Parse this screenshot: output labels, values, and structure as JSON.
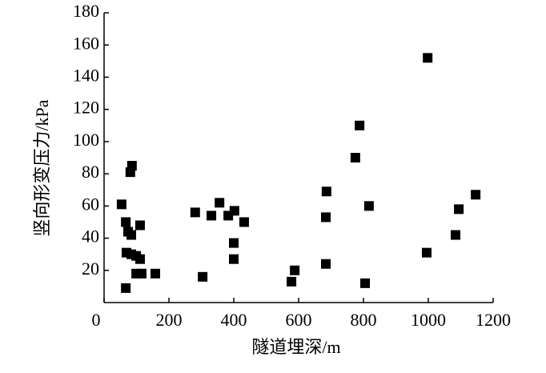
{
  "chart_data": {
    "type": "scatter",
    "x_label": "隧道埋深/m",
    "y_label": "竖向形变压力/kPa",
    "xlim": [
      0,
      1200
    ],
    "ylim": [
      0,
      180
    ],
    "xticks": [
      0,
      200,
      400,
      600,
      800,
      1000,
      1200
    ],
    "yticks": [
      20,
      40,
      60,
      80,
      100,
      120,
      140,
      160,
      180
    ],
    "color": "#000000",
    "x": [
      54,
      67,
      74,
      84,
      81,
      86,
      69,
      84,
      99,
      111,
      111,
      99,
      116,
      67,
      158,
      281,
      304,
      331,
      356,
      383,
      402,
      400,
      400,
      432,
      578,
      588,
      684,
      686,
      684,
      788,
      775,
      817,
      805,
      998,
      995,
      1084,
      1094,
      1146
    ],
    "values": [
      61,
      50,
      44,
      42,
      81,
      85,
      31,
      30,
      29,
      27,
      48,
      18,
      18,
      9,
      18,
      56,
      16,
      54,
      62,
      54,
      57,
      37,
      27,
      50,
      13,
      20,
      53,
      69,
      24,
      110,
      90,
      60,
      12,
      152,
      31,
      42,
      58,
      67
    ]
  }
}
